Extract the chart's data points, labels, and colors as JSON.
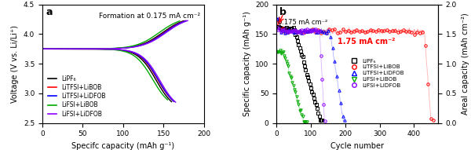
{
  "panel_a": {
    "title": "a",
    "annotation": "Formation at 0.175 mA cm⁻²",
    "xlabel": "Specifc capacity (mAh g⁻¹)",
    "ylabel": "Voltage (V vs. Li/Li⁺)",
    "xlim": [
      0,
      200
    ],
    "ylim": [
      2.5,
      4.5
    ],
    "yticks": [
      2.5,
      3.0,
      3.5,
      4.0,
      4.5
    ],
    "xticks": [
      0,
      50,
      100,
      150,
      200
    ],
    "series": [
      {
        "label": "LiPF₆",
        "color": "#000000"
      },
      {
        "label": "LiTFSI+LiBOB",
        "color": "#ff0000"
      },
      {
        "label": "LiTFSI+LiDFOB",
        "color": "#0000ff"
      },
      {
        "label": "LiFSI+LiBOB",
        "color": "#00aa00"
      },
      {
        "label": "LiFSI+LiDFOB",
        "color": "#8B00FF"
      }
    ]
  },
  "panel_b": {
    "title": "b",
    "annotation1": "0.175 mA cm⁻²",
    "annotation2": "1.75 mA cm⁻²",
    "xlabel": "Cycle number",
    "ylabel_left": "Specific capacity (mAh g⁻¹)",
    "ylabel_right": "Areal capacity (mAh cm⁻²)",
    "xlim": [
      0,
      470
    ],
    "ylim_left": [
      0,
      200
    ],
    "ylim_right": [
      0,
      2.0
    ],
    "yticks_left": [
      0,
      50,
      100,
      150,
      200
    ],
    "yticks_right": [
      0.0,
      0.5,
      1.0,
      1.5,
      2.0
    ],
    "xticks": [
      0,
      100,
      200,
      300,
      400
    ],
    "series": [
      {
        "label": "LiPF₆",
        "color": "#000000",
        "marker": "s"
      },
      {
        "label": "LiTFSI+LiBOB",
        "color": "#ff0000",
        "marker": "o"
      },
      {
        "label": "LiTFSI+LiDFOB",
        "color": "#0000ff",
        "marker": "^"
      },
      {
        "label": "LiFSI+LiBOB",
        "color": "#00aa00",
        "marker": "v"
      },
      {
        "label": "LiFSI+LiDFOB",
        "color": "#8B00FF",
        "marker": "o"
      }
    ]
  }
}
